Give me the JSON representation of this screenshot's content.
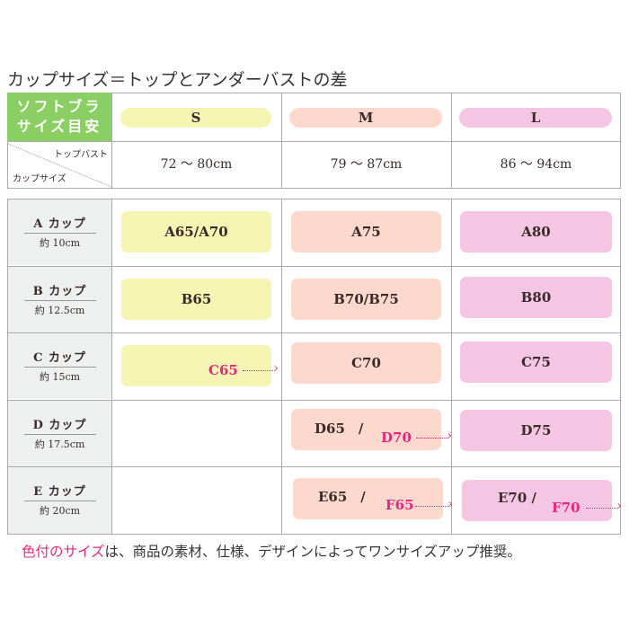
{
  "title": "カップサイズ＝トップとアンダーバストの差",
  "header": {
    "corner_label": "ソフトブラ\nサイズ目安",
    "corner_line1": "ソフトブラ",
    "corner_line2": "サイズ目安",
    "top_bust_label": "トップバスト",
    "cup_size_label": "カップサイズ",
    "sizes": [
      {
        "label": "S",
        "bust": "72 ～ 80cm",
        "color": "#f7f5b3"
      },
      {
        "label": "M",
        "bust": "79 ～ 87cm",
        "color": "#fcd9cc"
      },
      {
        "label": "L",
        "bust": "86 ～ 94cm",
        "color": "#f5c6e4"
      }
    ]
  },
  "rows": [
    {
      "cup": "A カップ",
      "diff": "約 10cm",
      "S": "A65/A70",
      "M": "A75",
      "L": "A80"
    },
    {
      "cup": "B カップ",
      "diff": "約 12.5cm",
      "S": "B65",
      "M": "B70/B75",
      "L": "B80"
    },
    {
      "cup": "C カップ",
      "diff": "約 15cm",
      "S_up": "C65",
      "M": "C70",
      "L": "C75"
    },
    {
      "cup": "D カップ",
      "diff": "約 17.5cm",
      "M": "D65　/",
      "M_up": "D70",
      "L": "D75"
    },
    {
      "cup": "E カップ",
      "diff": "約 20cm",
      "M": "E65　/",
      "M_up": "F65",
      "L": "E70 /",
      "L_up": "F70"
    }
  ],
  "footer": {
    "highlight": "色付のサイズ",
    "rest": "は、商品の素材、仕様、デザインによってワンサイズアップ推奨。"
  },
  "colors": {
    "accent": "#e0287e",
    "green": "#8bcf64"
  }
}
